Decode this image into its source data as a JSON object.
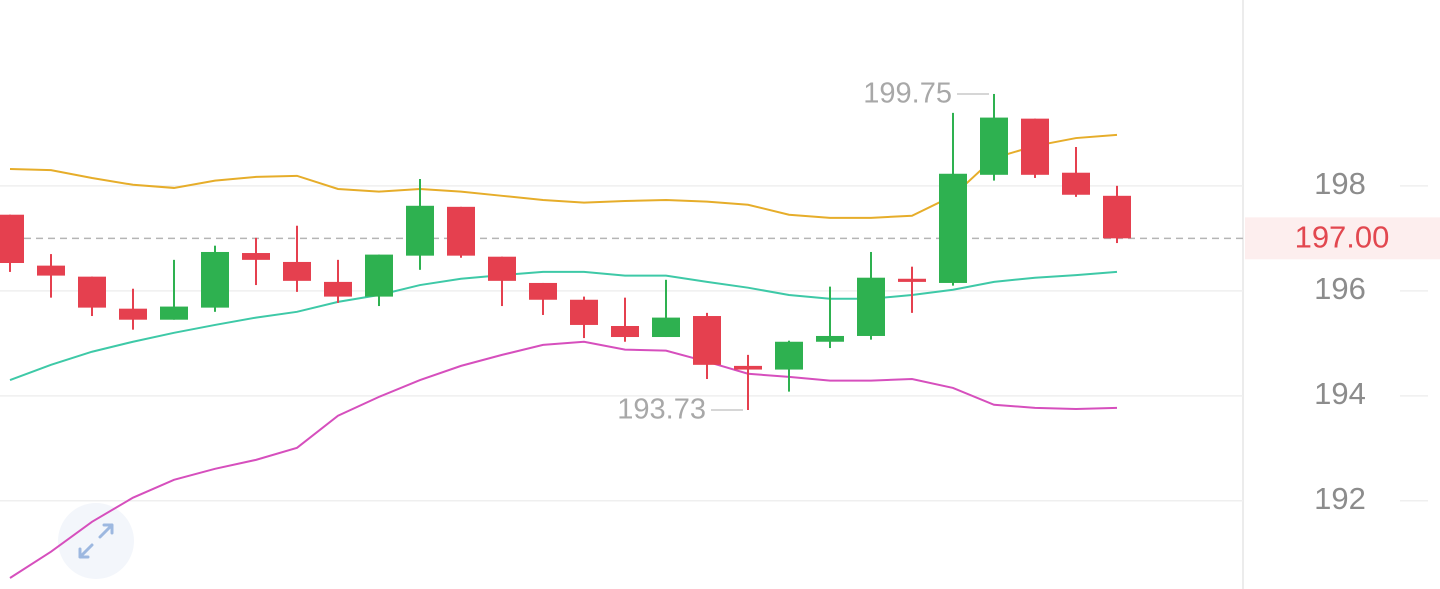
{
  "chart_data": {
    "type": "candlestick",
    "ylim": [
      190.32,
      201.54
    ],
    "yticks": [
      192,
      194,
      196,
      198
    ],
    "grid": true,
    "up_color": "#2eb150",
    "down_color": "#e5404f",
    "open": [
      197.45,
      196.48,
      196.27,
      195.66,
      195.45,
      195.68,
      196.72,
      196.55,
      196.17,
      195.89,
      196.67,
      197.6,
      196.65,
      196.15,
      195.83,
      195.33,
      195.12,
      195.52,
      194.57,
      194.5,
      195.03,
      195.14,
      196.23,
      196.15,
      198.21,
      199.28,
      198.25,
      197.81
    ],
    "high": [
      197.45,
      196.7,
      196.27,
      196.04,
      196.59,
      196.86,
      197.01,
      197.24,
      196.59,
      196.69,
      198.13,
      197.6,
      196.65,
      196.15,
      195.89,
      195.87,
      196.21,
      195.58,
      194.78,
      195.05,
      196.08,
      196.74,
      196.46,
      199.39,
      199.75,
      199.28,
      198.74,
      198.0
    ],
    "low": [
      196.36,
      195.87,
      195.52,
      195.26,
      195.45,
      195.6,
      196.11,
      195.98,
      195.77,
      195.71,
      196.4,
      196.63,
      195.71,
      195.54,
      195.1,
      195.03,
      195.12,
      194.32,
      193.73,
      194.08,
      194.91,
      195.07,
      195.58,
      196.1,
      198.1,
      198.15,
      197.79,
      196.91
    ],
    "close": [
      196.53,
      196.29,
      195.68,
      195.45,
      195.7,
      196.74,
      196.59,
      196.19,
      195.89,
      196.69,
      197.62,
      196.67,
      196.19,
      195.83,
      195.35,
      195.12,
      195.49,
      194.59,
      194.5,
      195.03,
      195.14,
      196.25,
      196.17,
      198.23,
      199.3,
      198.21,
      197.83,
      197.0
    ],
    "lines": [
      {
        "color": "#e6ad2a",
        "values": [
          198.32,
          198.3,
          198.15,
          198.02,
          197.96,
          198.1,
          198.17,
          198.19,
          197.94,
          197.89,
          197.94,
          197.89,
          197.81,
          197.73,
          197.68,
          197.71,
          197.73,
          197.7,
          197.64,
          197.45,
          197.39,
          197.39,
          197.43,
          197.81,
          198.53,
          198.76,
          198.91,
          198.97
        ]
      },
      {
        "color": "#3ec9a7",
        "values": [
          194.3,
          194.59,
          194.84,
          195.03,
          195.2,
          195.35,
          195.49,
          195.6,
          195.79,
          195.92,
          196.11,
          196.23,
          196.3,
          196.36,
          196.36,
          196.29,
          196.29,
          196.17,
          196.06,
          195.92,
          195.85,
          195.85,
          195.92,
          196.02,
          196.17,
          196.25,
          196.3,
          196.36
        ]
      },
      {
        "color": "#d64fbd",
        "values": [
          190.53,
          191.03,
          191.6,
          192.06,
          192.4,
          192.61,
          192.78,
          193.01,
          193.62,
          193.98,
          194.3,
          194.57,
          194.78,
          194.97,
          195.03,
          194.88,
          194.86,
          194.65,
          194.42,
          194.36,
          194.29,
          194.29,
          194.32,
          194.15,
          193.83,
          193.77,
          193.75,
          193.77
        ]
      }
    ],
    "max_label": "199.75",
    "min_label": "193.73",
    "last_price_label": "197.00"
  }
}
